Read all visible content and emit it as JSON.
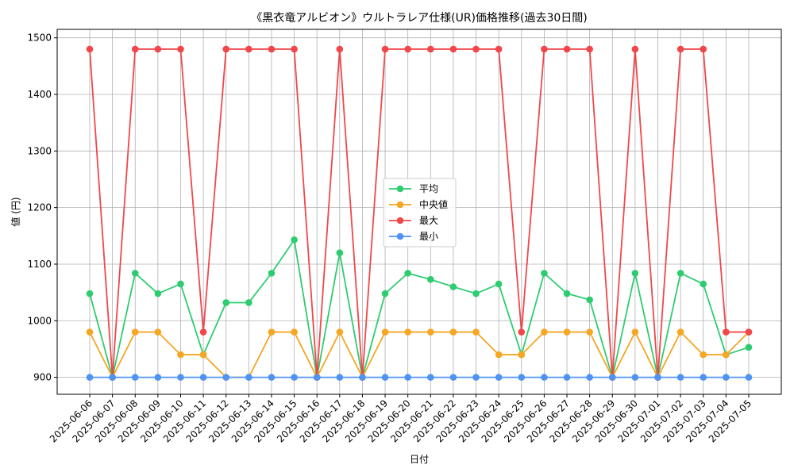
{
  "chart_data": {
    "type": "line",
    "title": "《黒衣竜アルビオン》ウルトラレア仕様(UR)価格推移(過去30日間)",
    "xlabel": "日付",
    "ylabel": "値 (円)",
    "ylim": [
      870,
      1515
    ],
    "yticks": [
      900,
      1000,
      1100,
      1200,
      1300,
      1400,
      1500
    ],
    "grid": true,
    "legend_position": "center",
    "categories": [
      "2025-06-06",
      "2025-06-07",
      "2025-06-08",
      "2025-06-09",
      "2025-06-10",
      "2025-06-11",
      "2025-06-12",
      "2025-06-13",
      "2025-06-14",
      "2025-06-15",
      "2025-06-16",
      "2025-06-17",
      "2025-06-18",
      "2025-06-19",
      "2025-06-20",
      "2025-06-21",
      "2025-06-22",
      "2025-06-23",
      "2025-06-24",
      "2025-06-25",
      "2025-06-26",
      "2025-06-27",
      "2025-06-28",
      "2025-06-29",
      "2025-06-30",
      "2025-07-01",
      "2025-07-02",
      "2025-07-03",
      "2025-07-04",
      "2025-07-05"
    ],
    "series": [
      {
        "name": "平均",
        "color": "#2ecc71",
        "values": [
          1048,
          900,
          1084,
          1048,
          1065,
          940,
          1032,
          1032,
          1084,
          1143,
          900,
          1120,
          900,
          1048,
          1084,
          1073,
          1060,
          1048,
          1065,
          940,
          1084,
          1048,
          1037,
          900,
          1084,
          900,
          1084,
          1065,
          940,
          953
        ]
      },
      {
        "name": "中央値",
        "color": "#f5a623",
        "values": [
          980,
          900,
          980,
          980,
          940,
          940,
          900,
          900,
          980,
          980,
          900,
          980,
          900,
          980,
          980,
          980,
          980,
          980,
          940,
          940,
          980,
          980,
          980,
          900,
          980,
          900,
          980,
          940,
          940,
          980
        ]
      },
      {
        "name": "最大",
        "color": "#f0474b",
        "values": [
          1480,
          900,
          1480,
          1480,
          1480,
          980,
          1480,
          1480,
          1480,
          1480,
          900,
          1480,
          900,
          1480,
          1480,
          1480,
          1480,
          1480,
          1480,
          980,
          1480,
          1480,
          1480,
          900,
          1480,
          900,
          1480,
          1480,
          980,
          980
        ]
      },
      {
        "name": "最小",
        "color": "#4f93f5",
        "values": [
          900,
          900,
          900,
          900,
          900,
          900,
          900,
          900,
          900,
          900,
          900,
          900,
          900,
          900,
          900,
          900,
          900,
          900,
          900,
          900,
          900,
          900,
          900,
          900,
          900,
          900,
          900,
          900,
          900,
          900
        ]
      }
    ]
  }
}
